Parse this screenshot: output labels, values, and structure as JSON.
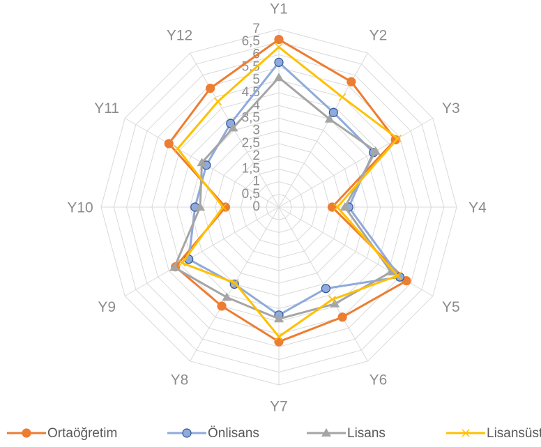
{
  "chart_data": {
    "type": "radar",
    "categories": [
      "Y1",
      "Y2",
      "Y3",
      "Y4",
      "Y5",
      "Y6",
      "Y7",
      "Y8",
      "Y9",
      "Y10",
      "Y11",
      "Y12"
    ],
    "ylim": [
      0,
      7
    ],
    "yticks": [
      0,
      {
        "value": 0.5,
        "label": "0,5"
      },
      1,
      {
        "value": 1.5,
        "label": "1,5"
      },
      2,
      {
        "value": 2.5,
        "label": "2,5"
      },
      3,
      {
        "value": 3.5,
        "label": "3,5"
      },
      4,
      {
        "value": 4.5,
        "label": "4,5"
      },
      5,
      {
        "value": 5.5,
        "label": "5,5"
      },
      6,
      {
        "value": 6.5,
        "label": "6,5"
      },
      7
    ],
    "grid": true,
    "legend": "bottom",
    "series": [
      {
        "name": "Ortaöğretim",
        "color": "#ed7d31",
        "marker": "circle",
        "values": [
          6.6,
          5.7,
          5.3,
          2.1,
          5.8,
          5.0,
          5.3,
          4.5,
          4.7,
          2.1,
          5.0,
          5.4
        ]
      },
      {
        "name": "Önlisans",
        "color": "#8faadc",
        "marker": "circle",
        "values": [
          5.7,
          4.3,
          4.3,
          2.75,
          5.5,
          3.7,
          4.25,
          3.5,
          4.1,
          3.3,
          3.3,
          3.8
        ]
      },
      {
        "name": "Lisans",
        "color": "#a5a5a5",
        "marker": "triangle",
        "values": [
          5.1,
          4.0,
          4.4,
          2.6,
          5.1,
          4.4,
          4.4,
          4.1,
          4.75,
          3.1,
          3.5,
          3.6
        ]
      },
      {
        "name": "Lisansüstü",
        "color": "#ffc000",
        "marker": "x",
        "values": [
          6.3,
          5.0,
          5.4,
          2.3,
          5.4,
          4.2,
          5.1,
          3.45,
          4.4,
          2.2,
          4.6,
          4.8
        ]
      }
    ]
  }
}
